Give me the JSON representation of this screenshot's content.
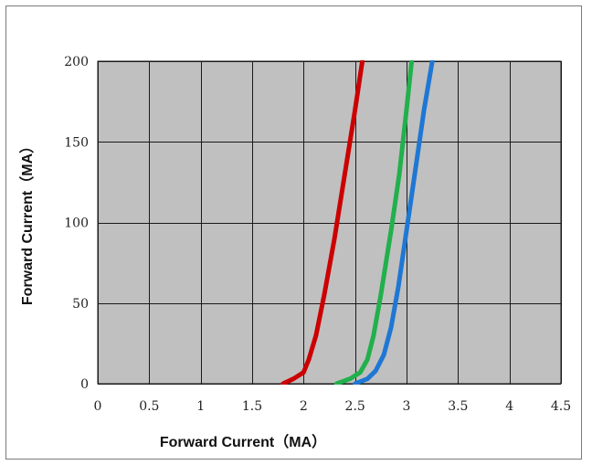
{
  "chart_data": {
    "type": "line",
    "title": "",
    "xlabel": "Forward Current（MA）",
    "ylabel": "Forward Current（MA）",
    "xlim": [
      0,
      4.5
    ],
    "ylim": [
      0,
      200
    ],
    "x_ticks": [
      "0",
      "0.5",
      "1",
      "1.5",
      "2",
      "2.5",
      "3",
      "3.5",
      "4",
      "4.5"
    ],
    "y_ticks": [
      "0",
      "50",
      "100",
      "150",
      "200"
    ],
    "grid": true,
    "legend": "none",
    "plot_background": "#c0c0c0",
    "grid_color": "#1a1a1a",
    "series": [
      {
        "color": "#cc0000",
        "points": [
          [
            1.8,
            0
          ],
          [
            1.9,
            3
          ],
          [
            2.0,
            7
          ],
          [
            2.05,
            15
          ],
          [
            2.12,
            30
          ],
          [
            2.2,
            55
          ],
          [
            2.3,
            90
          ],
          [
            2.4,
            130
          ],
          [
            2.5,
            170
          ],
          [
            2.57,
            200
          ]
        ]
      },
      {
        "color": "#22b04c",
        "points": [
          [
            2.32,
            0
          ],
          [
            2.45,
            3
          ],
          [
            2.55,
            7
          ],
          [
            2.62,
            15
          ],
          [
            2.68,
            30
          ],
          [
            2.75,
            55
          ],
          [
            2.85,
            95
          ],
          [
            2.93,
            130
          ],
          [
            3.0,
            170
          ],
          [
            3.05,
            200
          ]
        ]
      },
      {
        "color": "#1f77d4",
        "points": [
          [
            2.5,
            0
          ],
          [
            2.62,
            3
          ],
          [
            2.7,
            8
          ],
          [
            2.78,
            18
          ],
          [
            2.85,
            35
          ],
          [
            2.92,
            60
          ],
          [
            3.0,
            95
          ],
          [
            3.08,
            130
          ],
          [
            3.17,
            170
          ],
          [
            3.25,
            200
          ]
        ]
      }
    ]
  }
}
